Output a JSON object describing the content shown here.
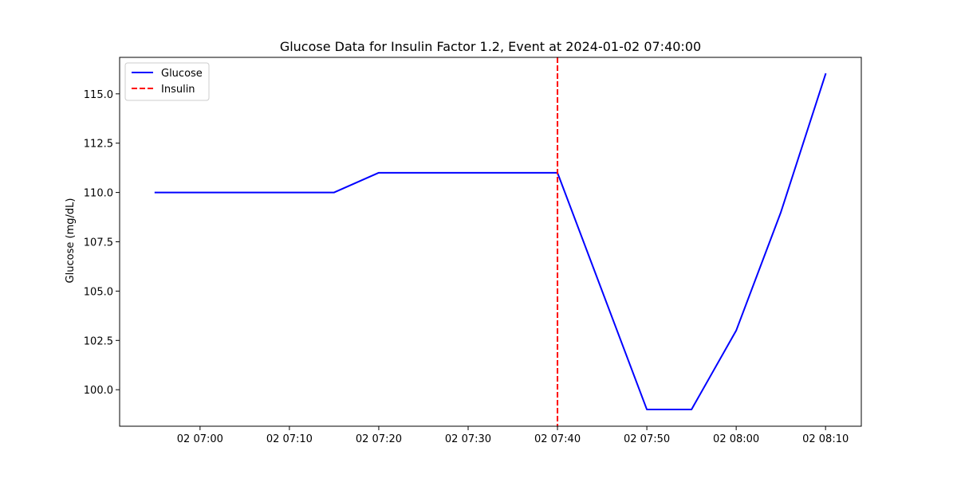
{
  "chart_data": {
    "type": "line",
    "title": "Glucose Data for Insulin Factor 1.2, Event at 2024-01-02 07:40:00",
    "xlabel": "",
    "ylabel": "Glucose (mg/dL)",
    "x": [
      "2024-01-02 06:55",
      "2024-01-02 07:00",
      "2024-01-02 07:05",
      "2024-01-02 07:10",
      "2024-01-02 07:15",
      "2024-01-02 07:20",
      "2024-01-02 07:25",
      "2024-01-02 07:30",
      "2024-01-02 07:35",
      "2024-01-02 07:40",
      "2024-01-02 07:45",
      "2024-01-02 07:50",
      "2024-01-02 07:55",
      "2024-01-02 08:00",
      "2024-01-02 08:05",
      "2024-01-02 08:10"
    ],
    "series": [
      {
        "name": "Glucose",
        "color": "#0000ff",
        "style": "solid",
        "values": [
          110,
          110,
          110,
          110,
          110,
          111,
          111,
          111,
          111,
          111,
          105,
          99,
          99,
          103,
          109,
          116
        ]
      }
    ],
    "vlines": [
      {
        "name": "Insulin",
        "x": "2024-01-02 07:40",
        "color": "#ff0000",
        "style": "dashed"
      }
    ],
    "xlim": [
      "2024-01-02 06:51",
      "2024-01-02 08:14"
    ],
    "ylim": [
      98.15,
      116.85
    ],
    "xticks": [
      {
        "x": "2024-01-02 07:00",
        "label": "02 07:00"
      },
      {
        "x": "2024-01-02 07:10",
        "label": "02 07:10"
      },
      {
        "x": "2024-01-02 07:20",
        "label": "02 07:20"
      },
      {
        "x": "2024-01-02 07:30",
        "label": "02 07:30"
      },
      {
        "x": "2024-01-02 07:40",
        "label": "02 07:40"
      },
      {
        "x": "2024-01-02 07:50",
        "label": "02 07:50"
      },
      {
        "x": "2024-01-02 08:00",
        "label": "02 08:00"
      },
      {
        "x": "2024-01-02 08:10",
        "label": "02 08:10"
      }
    ],
    "yticks": [
      {
        "y": 100.0,
        "label": "100.0"
      },
      {
        "y": 102.5,
        "label": "102.5"
      },
      {
        "y": 105.0,
        "label": "105.0"
      },
      {
        "y": 107.5,
        "label": "107.5"
      },
      {
        "y": 110.0,
        "label": "110.0"
      },
      {
        "y": 112.5,
        "label": "112.5"
      },
      {
        "y": 115.0,
        "label": "115.0"
      }
    ],
    "grid": false,
    "legend": {
      "position": "top-left",
      "entries": [
        {
          "label": "Glucose",
          "color": "#0000ff",
          "style": "solid"
        },
        {
          "label": "Insulin",
          "color": "#ff0000",
          "style": "dashed"
        }
      ]
    }
  }
}
